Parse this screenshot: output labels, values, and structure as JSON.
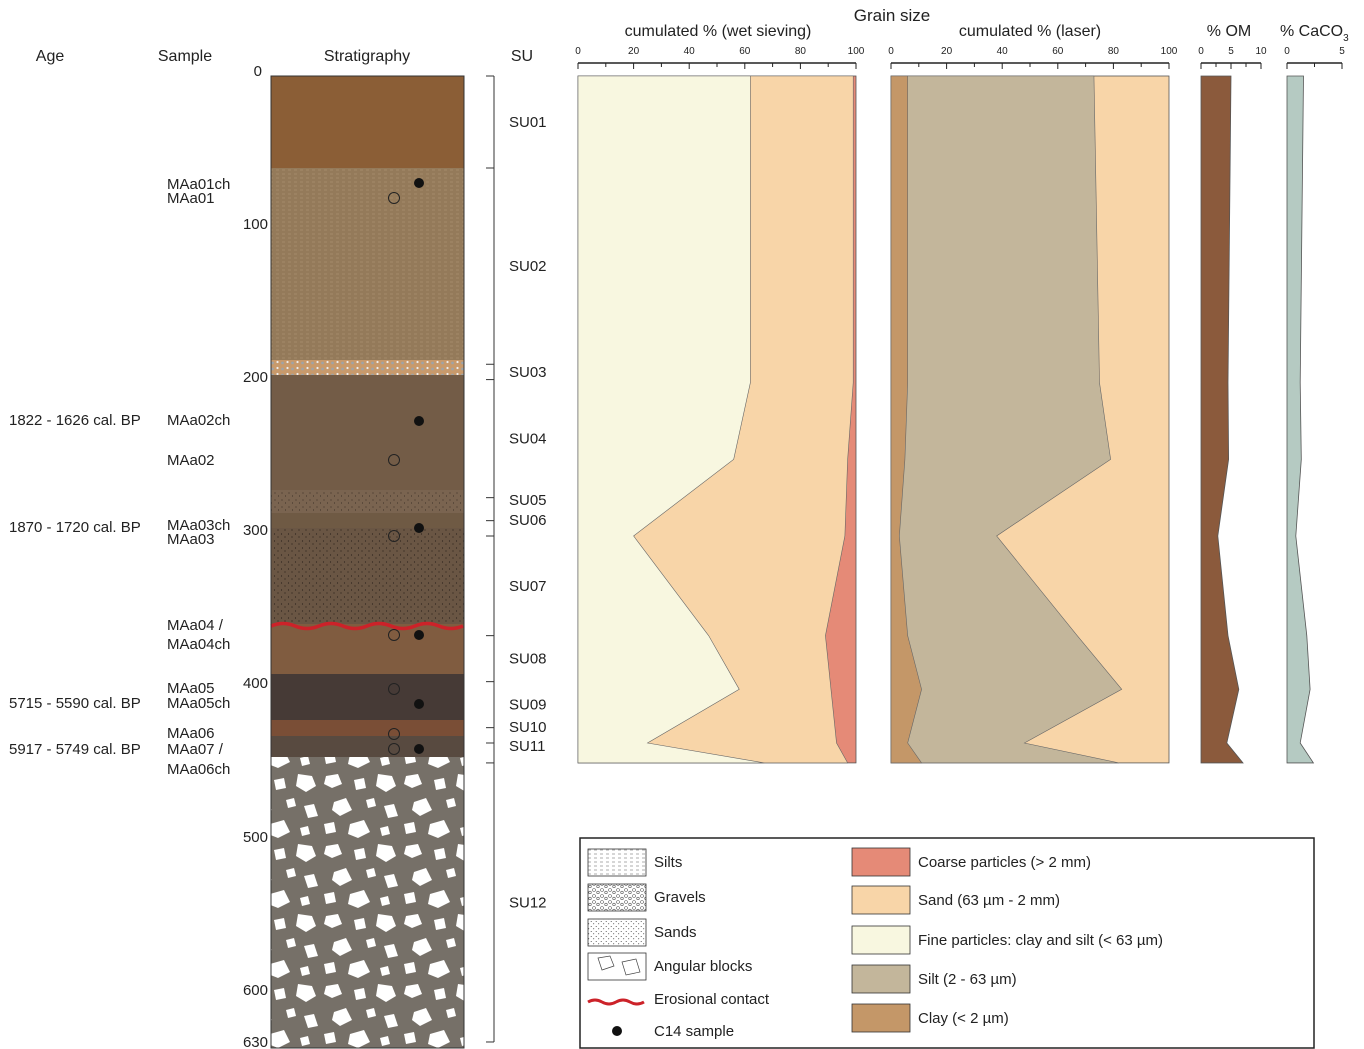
{
  "headers": {
    "age": "Age",
    "sample": "Sample",
    "stratigraphy": "Stratigraphy",
    "su": "SU",
    "grain_size": "Grain size",
    "wet_sieving": "cumulated % (wet sieving)",
    "laser": "cumulated % (laser)",
    "om": "% OM",
    "caco3_main": "% CaCO",
    "caco3_sub": "3"
  },
  "depth_ticks": [
    "0",
    "100",
    "200",
    "300",
    "400",
    "500",
    "600",
    "630"
  ],
  "ages": [
    {
      "text": "1822 - 1626 cal. BP"
    },
    {
      "text": "1870 - 1720 cal. BP"
    },
    {
      "text": "5715 - 5590 cal. BP"
    },
    {
      "text": "5917 - 5749 cal. BP"
    }
  ],
  "samples": [
    {
      "text": "MAa01ch"
    },
    {
      "text": "MAa01"
    },
    {
      "text": "MAa02ch"
    },
    {
      "text": "MAa02"
    },
    {
      "text": "MAa03ch"
    },
    {
      "text": "MAa03"
    },
    {
      "text": "MAa04 /"
    },
    {
      "text": "MAa04ch"
    },
    {
      "text": "MAa05"
    },
    {
      "text": "MAa05ch"
    },
    {
      "text": "MAa06"
    },
    {
      "text": "MAa07 /"
    },
    {
      "text": "MAa06ch"
    }
  ],
  "su_units": [
    {
      "name": "SU01",
      "top": 0,
      "bottom": 60
    },
    {
      "name": "SU02",
      "top": 60,
      "bottom": 188
    },
    {
      "name": "SU03",
      "top": 188,
      "bottom": 198
    },
    {
      "name": "SU04",
      "top": 198,
      "bottom": 275
    },
    {
      "name": "SU05",
      "top": 275,
      "bottom": 290
    },
    {
      "name": "SU06",
      "top": 290,
      "bottom": 300
    },
    {
      "name": "SU07",
      "top": 300,
      "bottom": 365
    },
    {
      "name": "SU08",
      "top": 365,
      "bottom": 395
    },
    {
      "name": "SU09",
      "top": 395,
      "bottom": 425
    },
    {
      "name": "SU10",
      "top": 425,
      "bottom": 435
    },
    {
      "name": "SU11",
      "top": 435,
      "bottom": 448
    },
    {
      "name": "SU12",
      "top": 448,
      "bottom": 630
    }
  ],
  "chart_data": [
    {
      "type": "area",
      "title": "cumulated % (wet sieving)",
      "xlim": [
        0,
        100
      ],
      "x_ticks": [
        "0",
        "20",
        "40",
        "60",
        "80",
        "100"
      ],
      "depth": [
        0,
        200,
        250,
        300,
        365,
        400,
        435,
        448
      ],
      "series": [
        {
          "name": "Fine particles: clay and silt (< 63 µm)",
          "values": [
            62,
            62,
            56,
            20,
            47,
            58,
            25,
            67
          ]
        },
        {
          "name": "Sand (63 µm - 2 mm)",
          "values": [
            99,
            99,
            97,
            96,
            89,
            91,
            93,
            97
          ]
        },
        {
          "name": "Coarse particles (> 2 mm)",
          "values": [
            100,
            100,
            100,
            100,
            100,
            100,
            100,
            100
          ]
        }
      ]
    },
    {
      "type": "area",
      "title": "cumulated % (laser)",
      "xlim": [
        0,
        100
      ],
      "x_ticks": [
        "0",
        "20",
        "40",
        "60",
        "80",
        "100"
      ],
      "depth": [
        0,
        200,
        250,
        300,
        365,
        400,
        435,
        448
      ],
      "series": [
        {
          "name": "Clay (< 2 µm)",
          "values": [
            6,
            6,
            5,
            3,
            6,
            11,
            6,
            11
          ]
        },
        {
          "name": "Silt (2 - 63 µm)",
          "values": [
            73,
            75,
            79,
            38,
            67,
            83,
            48,
            82
          ]
        },
        {
          "name": "Sand (63 µm - 2 mm)",
          "values": [
            100,
            100,
            100,
            100,
            100,
            100,
            100,
            100
          ]
        }
      ]
    },
    {
      "type": "area",
      "title": "% OM",
      "xlim": [
        0,
        10
      ],
      "x_ticks": [
        "0",
        "5",
        "10"
      ],
      "depth": [
        0,
        200,
        250,
        300,
        365,
        400,
        435,
        448
      ],
      "series": [
        {
          "name": "% OM",
          "values": [
            5,
            4.5,
            4.6,
            2.8,
            4.5,
            6.3,
            4.3,
            7
          ]
        }
      ]
    },
    {
      "type": "area",
      "title": "% CaCO3",
      "xlim": [
        0,
        5
      ],
      "x_ticks": [
        "0",
        "5"
      ],
      "depth": [
        0,
        200,
        250,
        300,
        365,
        400,
        435,
        448
      ],
      "series": [
        {
          "name": "% CaCO3",
          "values": [
            1.5,
            1.2,
            1.3,
            0.8,
            1.8,
            2.1,
            1.2,
            2.4
          ]
        }
      ]
    }
  ],
  "legend": {
    "patterns": [
      {
        "label": "Silts",
        "icon": "silt-pattern"
      },
      {
        "label": "Gravels",
        "icon": "gravel-pattern"
      },
      {
        "label": "Sands",
        "icon": "sand-pattern"
      },
      {
        "label": "Angular blocks",
        "icon": "blocks-pattern"
      },
      {
        "label": "Erosional contact",
        "icon": "red-wavy-line"
      },
      {
        "label": "C14 sample",
        "icon": "black-dot"
      }
    ],
    "fills": [
      {
        "label": "Coarse particles (> 2 mm)",
        "color": "#e58a77"
      },
      {
        "label": "Sand (63 µm - 2 mm)",
        "color": "#f8d5a8"
      },
      {
        "label": "Fine particles: clay and silt (< 63 µm)",
        "color": "#f8f7e0"
      },
      {
        "label": "Silt (2 - 63 µm)",
        "color": "#c3b69b"
      },
      {
        "label": "Clay (< 2 µm)",
        "color": "#c49768"
      }
    ]
  },
  "colors": {
    "coarse": "#e58a77",
    "sand": "#f8d5a8",
    "fine": "#f8f7e0",
    "silt": "#c3b69b",
    "clay": "#c49768",
    "om": "#8b5a3c",
    "caco3": "#b5cac2",
    "erosion": "#cc2229"
  }
}
